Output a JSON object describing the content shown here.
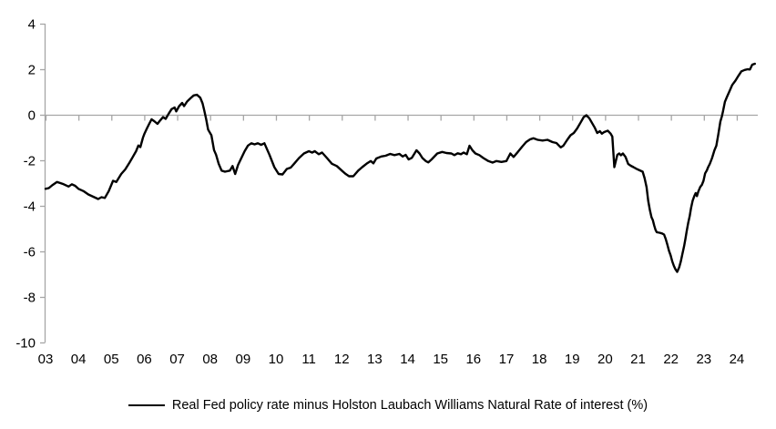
{
  "chart_data": {
    "type": "line",
    "title": "",
    "xlabel": "",
    "ylabel": "",
    "ylim": [
      -10,
      4
    ],
    "xlim": [
      2003,
      2024.65
    ],
    "grid": "zero-line-only",
    "legend_position": "bottom-center",
    "axis_color": "#a6a6a6",
    "text_color": "#000000",
    "y_ticks": [
      4,
      2,
      0,
      -2,
      -4,
      -6,
      -8,
      -10
    ],
    "x_tick_years": [
      2003,
      2004,
      2005,
      2006,
      2007,
      2008,
      2009,
      2010,
      2011,
      2012,
      2013,
      2014,
      2015,
      2016,
      2017,
      2018,
      2019,
      2020,
      2021,
      2022,
      2023,
      2024
    ],
    "x_tick_labels": [
      "03",
      "04",
      "05",
      "06",
      "07",
      "08",
      "09",
      "10",
      "11",
      "12",
      "13",
      "14",
      "15",
      "16",
      "17",
      "18",
      "19",
      "20",
      "21",
      "22",
      "23",
      "24"
    ],
    "series": [
      {
        "name": "Real Fed policy rate minus Holston Laubach Williams Natural Rate of interest (%)",
        "color": "#000000",
        "points": [
          [
            2003.0,
            -3.25
          ],
          [
            2003.1,
            -3.22
          ],
          [
            2003.2,
            -3.1
          ],
          [
            2003.35,
            -2.95
          ],
          [
            2003.45,
            -3.0
          ],
          [
            2003.55,
            -3.05
          ],
          [
            2003.7,
            -3.15
          ],
          [
            2003.8,
            -3.05
          ],
          [
            2003.9,
            -3.12
          ],
          [
            2004.0,
            -3.25
          ],
          [
            2004.15,
            -3.35
          ],
          [
            2004.3,
            -3.5
          ],
          [
            2004.45,
            -3.6
          ],
          [
            2004.6,
            -3.7
          ],
          [
            2004.7,
            -3.62
          ],
          [
            2004.8,
            -3.65
          ],
          [
            2004.92,
            -3.35
          ],
          [
            2005.05,
            -2.9
          ],
          [
            2005.15,
            -2.95
          ],
          [
            2005.3,
            -2.6
          ],
          [
            2005.42,
            -2.4
          ],
          [
            2005.55,
            -2.1
          ],
          [
            2005.65,
            -1.85
          ],
          [
            2005.75,
            -1.6
          ],
          [
            2005.82,
            -1.35
          ],
          [
            2005.88,
            -1.42
          ],
          [
            2005.96,
            -1.0
          ],
          [
            2006.0,
            -0.85
          ],
          [
            2006.08,
            -0.6
          ],
          [
            2006.15,
            -0.4
          ],
          [
            2006.22,
            -0.2
          ],
          [
            2006.3,
            -0.28
          ],
          [
            2006.4,
            -0.4
          ],
          [
            2006.48,
            -0.25
          ],
          [
            2006.57,
            -0.1
          ],
          [
            2006.65,
            -0.18
          ],
          [
            2006.74,
            0.05
          ],
          [
            2006.83,
            0.25
          ],
          [
            2006.92,
            0.32
          ],
          [
            2006.97,
            0.15
          ],
          [
            2007.06,
            0.38
          ],
          [
            2007.15,
            0.52
          ],
          [
            2007.21,
            0.38
          ],
          [
            2007.3,
            0.58
          ],
          [
            2007.4,
            0.72
          ],
          [
            2007.5,
            0.85
          ],
          [
            2007.6,
            0.88
          ],
          [
            2007.7,
            0.75
          ],
          [
            2007.77,
            0.5
          ],
          [
            2007.82,
            0.2
          ],
          [
            2007.88,
            -0.2
          ],
          [
            2007.94,
            -0.65
          ],
          [
            2008.04,
            -0.9
          ],
          [
            2008.12,
            -1.55
          ],
          [
            2008.18,
            -1.75
          ],
          [
            2008.26,
            -2.15
          ],
          [
            2008.35,
            -2.45
          ],
          [
            2008.45,
            -2.5
          ],
          [
            2008.6,
            -2.45
          ],
          [
            2008.68,
            -2.25
          ],
          [
            2008.76,
            -2.6
          ],
          [
            2008.85,
            -2.2
          ],
          [
            2008.95,
            -1.9
          ],
          [
            2009.05,
            -1.6
          ],
          [
            2009.15,
            -1.35
          ],
          [
            2009.25,
            -1.25
          ],
          [
            2009.35,
            -1.3
          ],
          [
            2009.45,
            -1.25
          ],
          [
            2009.55,
            -1.32
          ],
          [
            2009.65,
            -1.25
          ],
          [
            2009.8,
            -1.75
          ],
          [
            2009.95,
            -2.3
          ],
          [
            2010.08,
            -2.6
          ],
          [
            2010.2,
            -2.62
          ],
          [
            2010.33,
            -2.38
          ],
          [
            2010.45,
            -2.32
          ],
          [
            2010.55,
            -2.15
          ],
          [
            2010.7,
            -1.9
          ],
          [
            2010.85,
            -1.7
          ],
          [
            2011.0,
            -1.6
          ],
          [
            2011.1,
            -1.66
          ],
          [
            2011.18,
            -1.6
          ],
          [
            2011.3,
            -1.73
          ],
          [
            2011.4,
            -1.66
          ],
          [
            2011.55,
            -1.9
          ],
          [
            2011.7,
            -2.15
          ],
          [
            2011.85,
            -2.25
          ],
          [
            2012.0,
            -2.45
          ],
          [
            2012.1,
            -2.58
          ],
          [
            2012.22,
            -2.7
          ],
          [
            2012.35,
            -2.7
          ],
          [
            2012.5,
            -2.45
          ],
          [
            2012.62,
            -2.3
          ],
          [
            2012.75,
            -2.15
          ],
          [
            2012.88,
            -2.03
          ],
          [
            2012.96,
            -2.13
          ],
          [
            2013.05,
            -1.92
          ],
          [
            2013.2,
            -1.83
          ],
          [
            2013.33,
            -1.8
          ],
          [
            2013.47,
            -1.72
          ],
          [
            2013.6,
            -1.77
          ],
          [
            2013.75,
            -1.72
          ],
          [
            2013.85,
            -1.83
          ],
          [
            2013.94,
            -1.76
          ],
          [
            2014.03,
            -1.96
          ],
          [
            2014.13,
            -1.89
          ],
          [
            2014.27,
            -1.56
          ],
          [
            2014.36,
            -1.7
          ],
          [
            2014.45,
            -1.9
          ],
          [
            2014.55,
            -2.03
          ],
          [
            2014.63,
            -2.09
          ],
          [
            2014.73,
            -1.96
          ],
          [
            2014.9,
            -1.7
          ],
          [
            2015.05,
            -1.63
          ],
          [
            2015.18,
            -1.68
          ],
          [
            2015.33,
            -1.7
          ],
          [
            2015.42,
            -1.77
          ],
          [
            2015.52,
            -1.69
          ],
          [
            2015.62,
            -1.73
          ],
          [
            2015.7,
            -1.66
          ],
          [
            2015.8,
            -1.73
          ],
          [
            2015.88,
            -1.36
          ],
          [
            2015.97,
            -1.56
          ],
          [
            2016.06,
            -1.7
          ],
          [
            2016.18,
            -1.77
          ],
          [
            2016.3,
            -1.9
          ],
          [
            2016.45,
            -2.03
          ],
          [
            2016.58,
            -2.1
          ],
          [
            2016.7,
            -2.03
          ],
          [
            2016.85,
            -2.07
          ],
          [
            2017.0,
            -2.03
          ],
          [
            2017.12,
            -1.7
          ],
          [
            2017.22,
            -1.85
          ],
          [
            2017.35,
            -1.63
          ],
          [
            2017.48,
            -1.4
          ],
          [
            2017.6,
            -1.2
          ],
          [
            2017.72,
            -1.08
          ],
          [
            2017.82,
            -1.03
          ],
          [
            2017.95,
            -1.1
          ],
          [
            2018.1,
            -1.13
          ],
          [
            2018.25,
            -1.1
          ],
          [
            2018.4,
            -1.2
          ],
          [
            2018.52,
            -1.24
          ],
          [
            2018.65,
            -1.43
          ],
          [
            2018.73,
            -1.36
          ],
          [
            2018.85,
            -1.1
          ],
          [
            2018.95,
            -0.9
          ],
          [
            2019.05,
            -0.8
          ],
          [
            2019.15,
            -0.6
          ],
          [
            2019.25,
            -0.35
          ],
          [
            2019.35,
            -0.1
          ],
          [
            2019.43,
            -0.02
          ],
          [
            2019.52,
            -0.15
          ],
          [
            2019.6,
            -0.35
          ],
          [
            2019.68,
            -0.55
          ],
          [
            2019.76,
            -0.8
          ],
          [
            2019.84,
            -0.72
          ],
          [
            2019.9,
            -0.83
          ],
          [
            2019.97,
            -0.76
          ],
          [
            2020.08,
            -0.7
          ],
          [
            2020.17,
            -0.83
          ],
          [
            2020.22,
            -0.96
          ],
          [
            2020.28,
            -2.3
          ],
          [
            2020.37,
            -1.76
          ],
          [
            2020.43,
            -1.7
          ],
          [
            2020.48,
            -1.78
          ],
          [
            2020.54,
            -1.7
          ],
          [
            2020.62,
            -1.85
          ],
          [
            2020.7,
            -2.16
          ],
          [
            2020.78,
            -2.24
          ],
          [
            2020.86,
            -2.3
          ],
          [
            2020.95,
            -2.37
          ],
          [
            2021.05,
            -2.44
          ],
          [
            2021.14,
            -2.5
          ],
          [
            2021.2,
            -2.78
          ],
          [
            2021.26,
            -3.18
          ],
          [
            2021.31,
            -3.78
          ],
          [
            2021.36,
            -4.18
          ],
          [
            2021.41,
            -4.5
          ],
          [
            2021.45,
            -4.63
          ],
          [
            2021.49,
            -4.85
          ],
          [
            2021.53,
            -5.05
          ],
          [
            2021.57,
            -5.16
          ],
          [
            2021.65,
            -5.18
          ],
          [
            2021.73,
            -5.21
          ],
          [
            2021.79,
            -5.26
          ],
          [
            2021.84,
            -5.45
          ],
          [
            2021.89,
            -5.7
          ],
          [
            2021.94,
            -5.97
          ],
          [
            2021.99,
            -6.17
          ],
          [
            2022.04,
            -6.44
          ],
          [
            2022.09,
            -6.64
          ],
          [
            2022.13,
            -6.77
          ],
          [
            2022.19,
            -6.9
          ],
          [
            2022.25,
            -6.7
          ],
          [
            2022.3,
            -6.44
          ],
          [
            2022.35,
            -6.1
          ],
          [
            2022.4,
            -5.77
          ],
          [
            2022.44,
            -5.44
          ],
          [
            2022.48,
            -5.1
          ],
          [
            2022.52,
            -4.77
          ],
          [
            2022.57,
            -4.44
          ],
          [
            2022.61,
            -4.1
          ],
          [
            2022.66,
            -3.77
          ],
          [
            2022.71,
            -3.57
          ],
          [
            2022.75,
            -3.44
          ],
          [
            2022.79,
            -3.57
          ],
          [
            2022.83,
            -3.37
          ],
          [
            2022.89,
            -3.17
          ],
          [
            2022.94,
            -3.08
          ],
          [
            2022.99,
            -2.9
          ],
          [
            2023.04,
            -2.57
          ],
          [
            2023.09,
            -2.44
          ],
          [
            2023.13,
            -2.3
          ],
          [
            2023.18,
            -2.16
          ],
          [
            2023.25,
            -1.9
          ],
          [
            2023.32,
            -1.56
          ],
          [
            2023.38,
            -1.36
          ],
          [
            2023.44,
            -0.85
          ],
          [
            2023.5,
            -0.3
          ],
          [
            2023.55,
            -0.05
          ],
          [
            2023.58,
            0.15
          ],
          [
            2023.64,
            0.57
          ],
          [
            2023.7,
            0.78
          ],
          [
            2023.78,
            1.04
          ],
          [
            2023.86,
            1.31
          ],
          [
            2023.96,
            1.5
          ],
          [
            2024.05,
            1.71
          ],
          [
            2024.14,
            1.91
          ],
          [
            2024.24,
            1.97
          ],
          [
            2024.33,
            2.0
          ],
          [
            2024.4,
            1.99
          ],
          [
            2024.47,
            2.2
          ],
          [
            2024.55,
            2.24
          ]
        ]
      }
    ]
  },
  "legend": {
    "label": "Real Fed policy rate minus Holston Laubach Williams Natural Rate of interest (%)"
  }
}
